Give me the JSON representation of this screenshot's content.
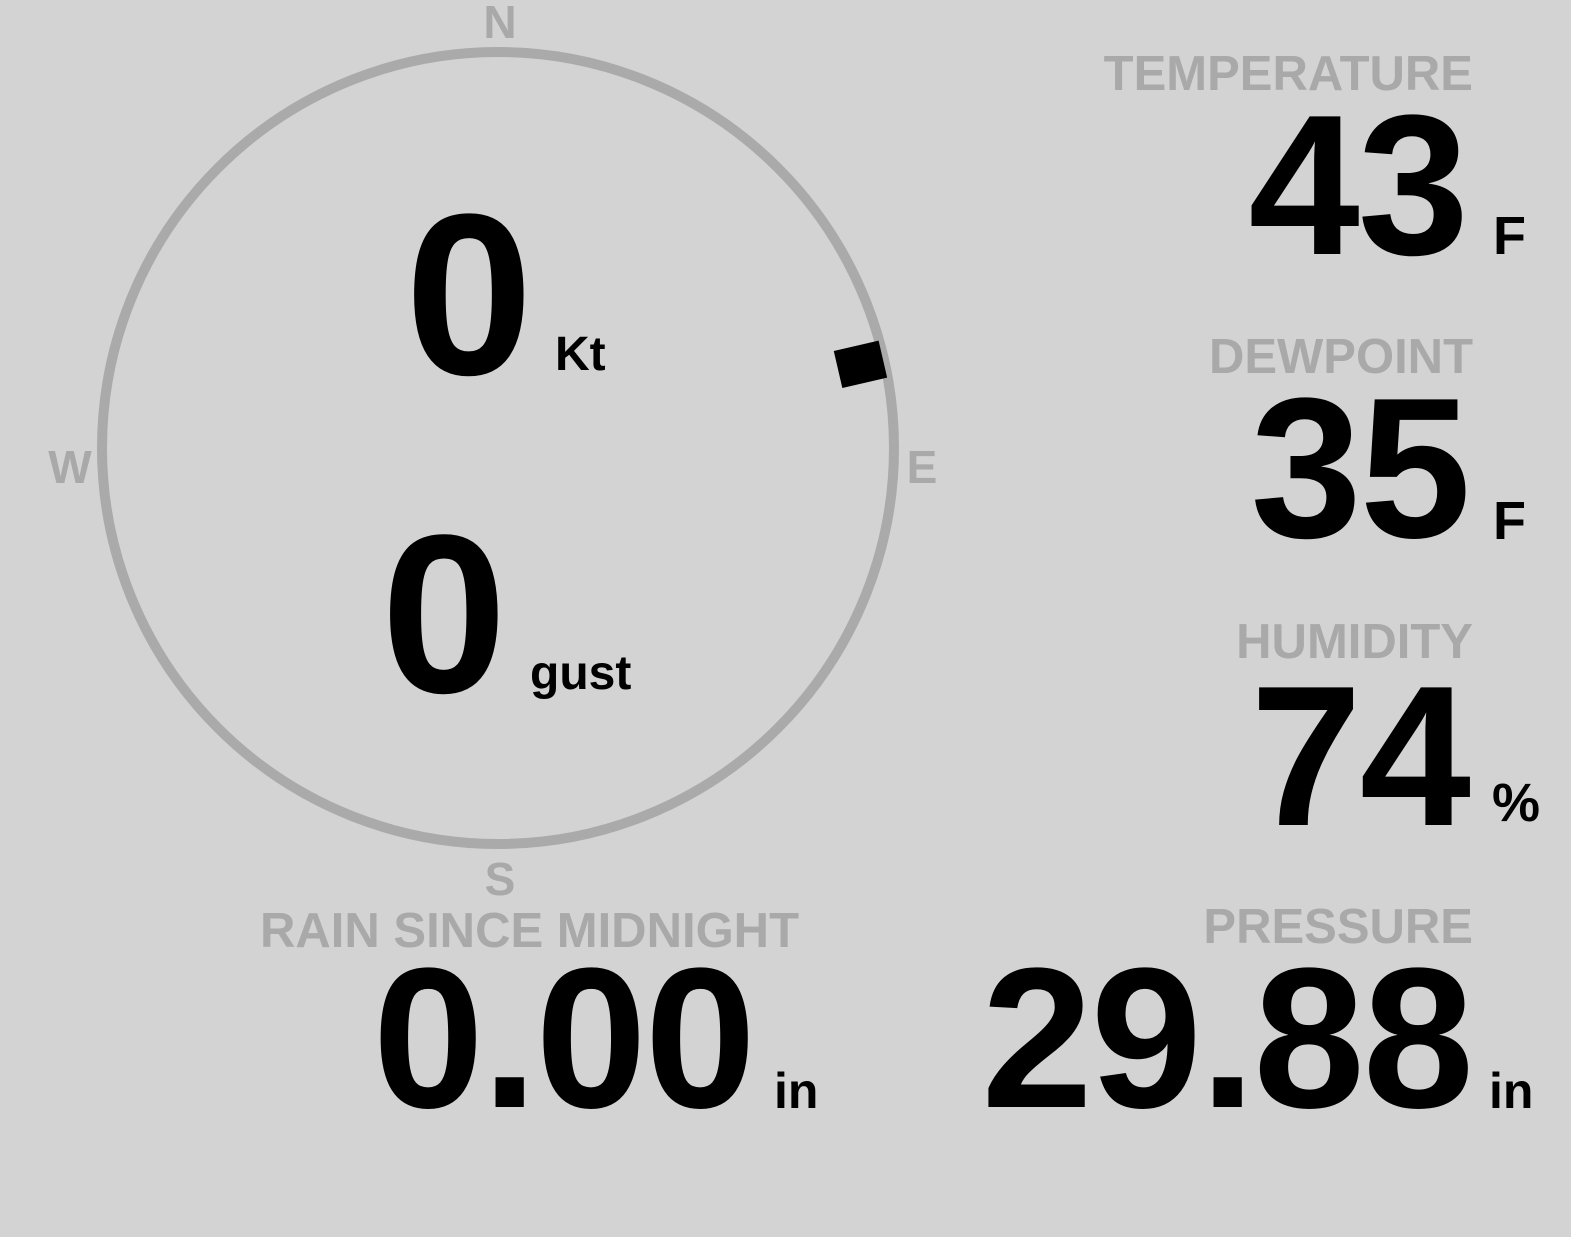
{
  "compass": {
    "north": "N",
    "south": "S",
    "east": "E",
    "west": "W",
    "wind_direction_deg": 77,
    "colors": {
      "ring": "#aaaaaa",
      "marker": "#000000"
    }
  },
  "wind": {
    "speed": "0",
    "speed_unit": "Kt",
    "gust": "0",
    "gust_unit": "gust"
  },
  "temperature": {
    "label": "TEMPERATURE",
    "value": "43",
    "unit": "F"
  },
  "dewpoint": {
    "label": "DEWPOINT",
    "value": "35",
    "unit": "F"
  },
  "humidity": {
    "label": "HUMIDITY",
    "value": "74",
    "unit": "%"
  },
  "pressure": {
    "label": "PRESSURE",
    "value": "29.88",
    "unit": "in"
  },
  "rain": {
    "label": "RAIN SINCE MIDNIGHT",
    "value": "0.00",
    "unit": "in"
  },
  "colors": {
    "background": "#d3d3d3",
    "label": "#a9a9a9",
    "value": "#000000"
  }
}
